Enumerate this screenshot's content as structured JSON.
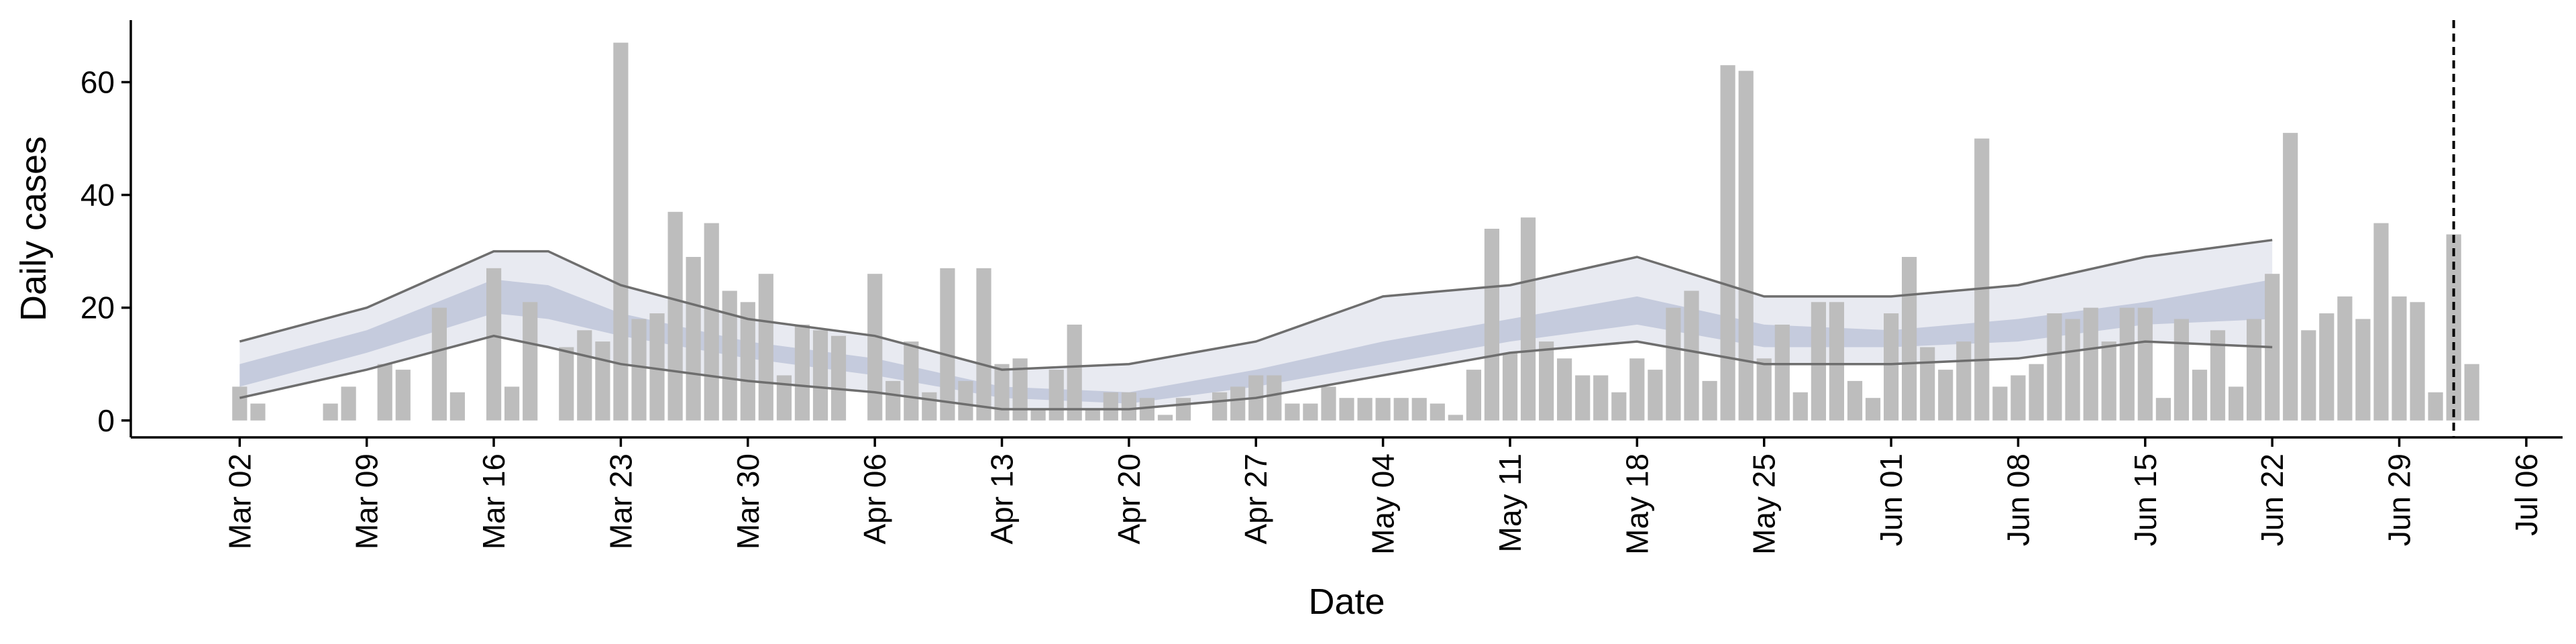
{
  "chart_data": {
    "type": "bar",
    "xlabel": "Date",
    "ylabel": "Daily cases",
    "xlim": [
      "2020-02-25",
      "2020-07-08"
    ],
    "ylim": [
      -3,
      71
    ],
    "y_ticks": [
      0,
      20,
      40,
      60
    ],
    "x_ticks": [
      {
        "date": "2020-03-02",
        "label": "Mar 02"
      },
      {
        "date": "2020-03-09",
        "label": "Mar 09"
      },
      {
        "date": "2020-03-16",
        "label": "Mar 16"
      },
      {
        "date": "2020-03-23",
        "label": "Mar 23"
      },
      {
        "date": "2020-03-30",
        "label": "Mar 30"
      },
      {
        "date": "2020-04-06",
        "label": "Apr 06"
      },
      {
        "date": "2020-04-13",
        "label": "Apr 13"
      },
      {
        "date": "2020-04-20",
        "label": "Apr 20"
      },
      {
        "date": "2020-04-27",
        "label": "Apr 27"
      },
      {
        "date": "2020-05-04",
        "label": "May 04"
      },
      {
        "date": "2020-05-11",
        "label": "May 11"
      },
      {
        "date": "2020-05-18",
        "label": "May 18"
      },
      {
        "date": "2020-05-25",
        "label": "May 25"
      },
      {
        "date": "2020-06-01",
        "label": "Jun 01"
      },
      {
        "date": "2020-06-08",
        "label": "Jun 08"
      },
      {
        "date": "2020-06-15",
        "label": "Jun 15"
      },
      {
        "date": "2020-06-22",
        "label": "Jun 22"
      },
      {
        "date": "2020-06-29",
        "label": "Jun 29"
      },
      {
        "date": "2020-07-06",
        "label": "Jul 06"
      }
    ],
    "bar_start_date": "2020-03-02",
    "daily_cases": [
      6,
      3,
      0,
      0,
      0,
      3,
      6,
      0,
      10,
      9,
      0,
      20,
      5,
      0,
      27,
      6,
      21,
      0,
      13,
      16,
      14,
      67,
      18,
      19,
      37,
      29,
      35,
      23,
      21,
      26,
      8,
      17,
      16,
      15,
      0,
      26,
      7,
      14,
      5,
      27,
      7,
      27,
      10,
      11,
      2,
      9,
      17,
      2,
      5,
      5,
      4,
      1,
      4,
      0,
      5,
      6,
      8,
      8,
      3,
      3,
      6,
      4,
      4,
      4,
      4,
      4,
      3,
      1,
      9,
      34,
      12,
      36,
      14,
      11,
      8,
      8,
      5,
      11,
      9,
      20,
      23,
      7,
      63,
      62,
      11,
      17,
      5,
      21,
      21,
      7,
      4,
      19,
      29,
      13,
      9,
      14,
      50,
      6,
      8,
      10,
      19,
      18,
      20,
      14,
      20,
      20,
      4,
      18,
      9,
      16,
      6,
      18,
      26,
      51,
      16,
      19,
      22,
      18,
      35,
      22,
      21,
      5,
      33,
      10
    ],
    "band_dates": [
      "2020-03-02",
      "2020-03-09",
      "2020-03-16",
      "2020-03-19",
      "2020-03-23",
      "2020-03-30",
      "2020-04-06",
      "2020-04-13",
      "2020-04-20",
      "2020-04-27",
      "2020-05-04",
      "2020-05-11",
      "2020-05-18",
      "2020-05-25",
      "2020-06-01",
      "2020-06-08",
      "2020-06-15",
      "2020-06-22"
    ],
    "outer_upper": [
      14,
      20,
      30,
      30,
      24,
      18,
      15,
      9,
      10,
      14,
      22,
      24,
      29,
      22,
      22,
      24,
      29,
      32
    ],
    "outer_lower": [
      4,
      9,
      15,
      13,
      10,
      7,
      5,
      2,
      2,
      4,
      8,
      12,
      14,
      10,
      10,
      11,
      14,
      13
    ],
    "inner_upper": [
      10,
      16,
      25,
      24,
      19,
      14,
      11,
      6,
      5,
      9,
      14,
      18,
      22,
      17,
      16,
      18,
      21,
      25
    ],
    "inner_lower": [
      6,
      12,
      19,
      18,
      15,
      11,
      8,
      4,
      3,
      6,
      10,
      14,
      17,
      13,
      13,
      14,
      17,
      18
    ],
    "vline_date": "2020-07-02",
    "colors": {
      "bar": "#bdbdbd",
      "outer_band": "#e8eaf1",
      "inner_band": "#c5cbdd",
      "band_line": "#6e6e6e",
      "axis": "#000000"
    }
  }
}
